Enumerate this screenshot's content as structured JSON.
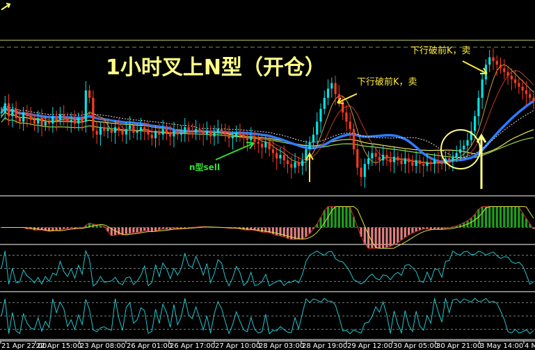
{
  "chart_data": {
    "type": "candlestick",
    "title": "1小时叉上N型（开仓）",
    "annotations": [
      {
        "id": "sell-1",
        "text": "下行破前K，卖"
      },
      {
        "id": "sell-2",
        "text": "下行破前K，卖"
      },
      {
        "id": "n-sell",
        "text": "n型sell"
      }
    ],
    "x_ticks": [
      "21 Apr 22:00",
      "22 Apr 15:00",
      "23 Apr 08:00",
      "26 Apr 01:00",
      "26 Apr 17:00",
      "27 Apr 10:00",
      "28 Apr 03:00",
      "28 Apr 19:00",
      "29 Apr 12:00",
      "30 Apr 05:00",
      "30 Apr 21:00",
      "3 May 14:00",
      "4 M"
    ],
    "price": [
      50,
      55,
      48,
      52,
      47,
      45,
      50,
      48,
      46,
      44,
      47,
      43,
      45,
      44,
      48,
      46,
      49,
      47,
      45,
      46,
      44,
      47,
      45,
      62,
      58,
      40,
      38,
      42,
      40,
      41,
      39,
      42,
      40,
      38,
      41,
      43,
      39,
      40,
      42,
      41,
      38,
      36,
      40,
      38,
      41,
      39,
      37,
      40,
      38,
      39,
      42,
      40,
      39,
      41,
      40,
      38,
      40,
      37,
      39,
      41,
      40,
      38,
      36,
      37,
      39,
      38,
      36,
      35,
      37,
      34,
      33,
      31,
      34,
      30,
      28,
      25,
      27,
      24,
      22,
      20,
      23,
      21,
      24,
      30,
      34,
      38,
      45,
      52,
      58,
      63,
      66,
      60,
      56,
      50,
      45,
      41,
      30,
      20,
      15,
      22,
      25,
      28,
      26,
      24,
      27,
      25,
      23,
      26,
      24,
      22,
      25,
      23,
      21,
      24,
      22,
      21,
      23,
      22,
      24,
      23,
      22,
      25,
      24,
      26,
      28,
      30,
      32,
      35,
      40,
      48,
      58,
      68,
      76,
      80,
      78,
      76,
      74,
      72,
      70,
      68,
      66,
      64,
      62,
      60,
      58,
      56
    ],
    "colors": {
      "background": "#000000",
      "grid": "#8a8a8a",
      "bull": "#00e5e5",
      "bear": "#ff3b1f",
      "ma_blue": "#2e7bff",
      "ma_yellow": "#e8e85a",
      "ma_green": "#9ad94a",
      "ma_red": "#c0392b",
      "ma_white": "#e6e6e6",
      "macd_pos": "#1fa01f",
      "macd_neg": "#e08080",
      "osc": "#20c8d0",
      "title": "#ffff88",
      "annotation": "#ffeb3b",
      "n_sell": "#30e030"
    }
  }
}
